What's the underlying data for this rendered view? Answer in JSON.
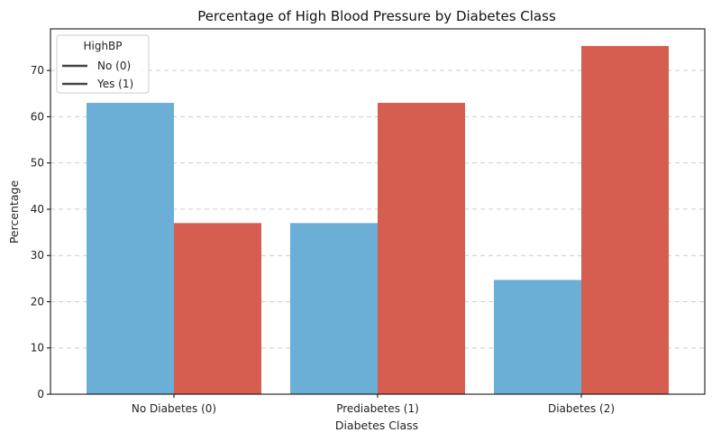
{
  "chart_data": {
    "type": "bar",
    "title": "Percentage of High Blood Pressure by Diabetes Class",
    "xlabel": "Diabetes Class",
    "ylabel": "Percentage",
    "categories": [
      "No Diabetes (0)",
      "Prediabetes (1)",
      "Diabetes (2)"
    ],
    "series": [
      {
        "name": "No (0)",
        "color": "#6baed6",
        "values": [
          63.0,
          37.0,
          24.7
        ]
      },
      {
        "name": "Yes (1)",
        "color": "#d55e50",
        "values": [
          37.0,
          63.0,
          75.3
        ]
      }
    ],
    "ylim": [
      0,
      79
    ],
    "yticks": [
      0,
      10,
      20,
      30,
      40,
      50,
      60,
      70
    ],
    "grid": "y, dashed",
    "legend": {
      "title": "HighBP",
      "placement": "top-left"
    }
  }
}
